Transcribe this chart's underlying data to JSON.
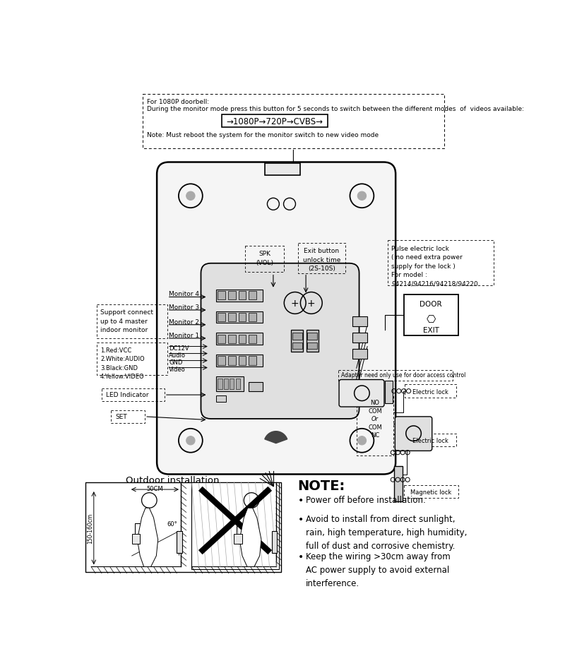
{
  "bg_color": "#ffffff",
  "top_box_text1": "For 1080P doorbell:",
  "top_box_text2": "During the monitor mode press this button for 5 seconds to switch between the different modes  of  videos available:",
  "flow_text": "→1080P→720P→CVBS→",
  "note_text": "Note: Must reboot the system for the monitor switch to new video mode",
  "pulse_lock_text": "Pulse electric lock\n( no need extra power\nsupply for the lock )\nFor model :\n94214/94216/94218/94220",
  "support_text": "Support connect\nup to 4 master\nindoor monitor",
  "wire_text": "1.Red:VCC\n2.White:AUDIO\n3.Black:GND\n4.Yellow:VIDEO",
  "dc_text": "DC12V\nAudio\nGND\nVideo",
  "adapter_text": "Adapter need only use for door access control",
  "electric_lock1": "Electric lock",
  "electric_lock2": "Electric lock",
  "magnetic_lock": "Magnetic lock",
  "outdoor_title": "Outdoor installation",
  "note_title": "NOTE:",
  "note_bullets": [
    "Power off before installation.",
    "Avoid to install from direct sunlight,\nrain, high temperature, high humidity,\nfull of dust and corrosive chemistry.",
    "Keep the wiring >30cm away from\nAC power supply to avoid external\ninterference."
  ]
}
